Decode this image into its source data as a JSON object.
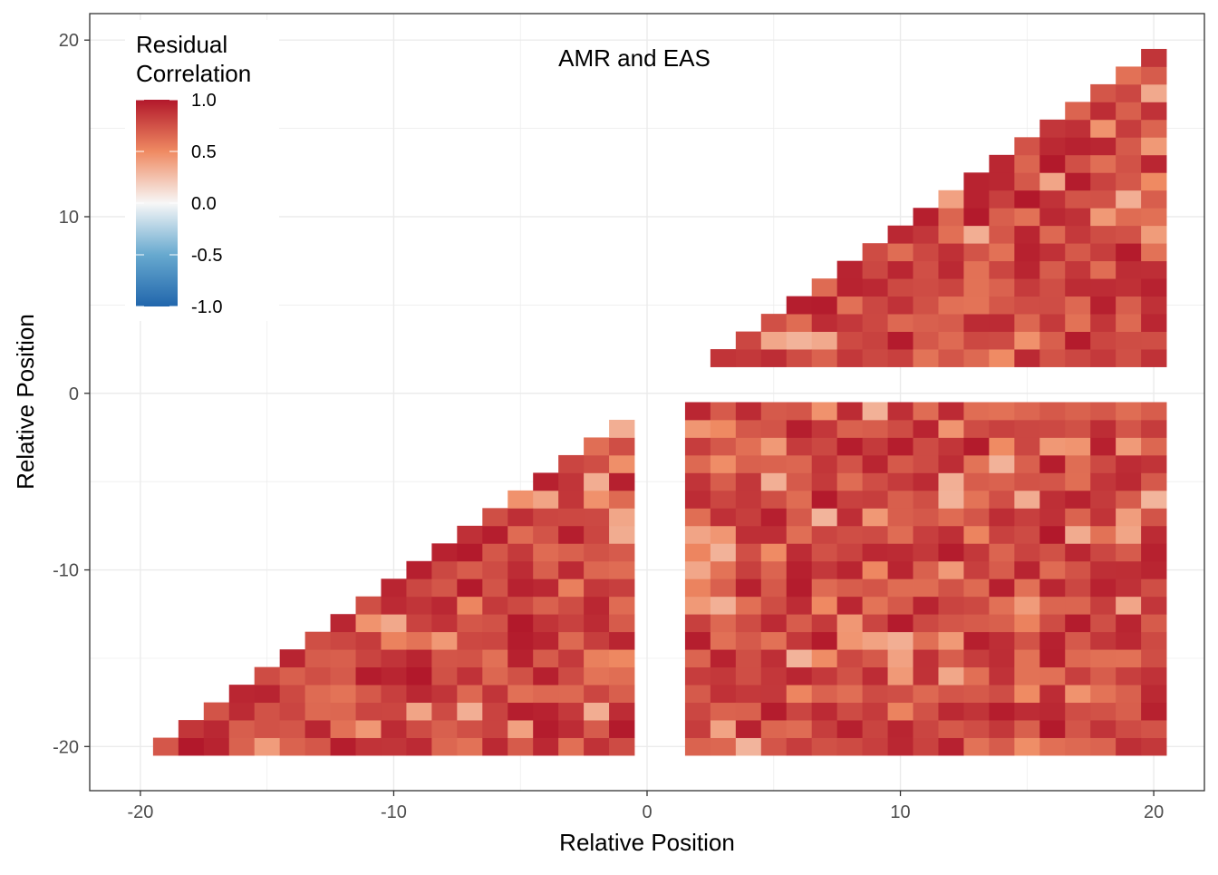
{
  "chart_data": {
    "type": "heatmap",
    "title": "",
    "annotation": "AMR and EAS",
    "xlabel": "Relative Position",
    "ylabel": "Relative Position",
    "xlim": [
      -22,
      22
    ],
    "ylim": [
      -22.5,
      21.5
    ],
    "x_ticks": [
      -20,
      -10,
      0,
      10,
      20
    ],
    "y_ticks": [
      -20,
      -10,
      0,
      10,
      20
    ],
    "grid": true,
    "legend": {
      "title_lines": [
        "Residual",
        "Correlation"
      ],
      "labels": [
        "1.0",
        "0.5",
        "0.0",
        "-0.5",
        "-1.0"
      ],
      "values": [
        1.0,
        0.5,
        0.0,
        -0.5,
        -1.0
      ],
      "range": [
        -1,
        1
      ],
      "position": "top-left",
      "colors": {
        "-1": "#2166ac",
        "-0.5": "#67a9cf",
        "0": "#f7f7f7",
        "0.5": "#ef8a62",
        "1": "#b2182b"
      }
    },
    "regions": [
      {
        "name": "lower-left triangle",
        "x_range": [
          -19,
          -1
        ],
        "y_range": [
          -20,
          -2
        ],
        "shape": "lower-triangle",
        "approx_value_range": [
          0.3,
          1.0
        ]
      },
      {
        "name": "upper-right triangle",
        "x_range": [
          3,
          20
        ],
        "y_range": [
          2,
          20
        ],
        "shape": "upper-triangle",
        "approx_value_range": [
          0.3,
          1.0
        ]
      },
      {
        "name": "lower-right block",
        "x_range": [
          2,
          20
        ],
        "y_range": [
          -20,
          -1
        ],
        "shape": "full",
        "approx_value_range": [
          0.3,
          1.0
        ]
      }
    ]
  }
}
